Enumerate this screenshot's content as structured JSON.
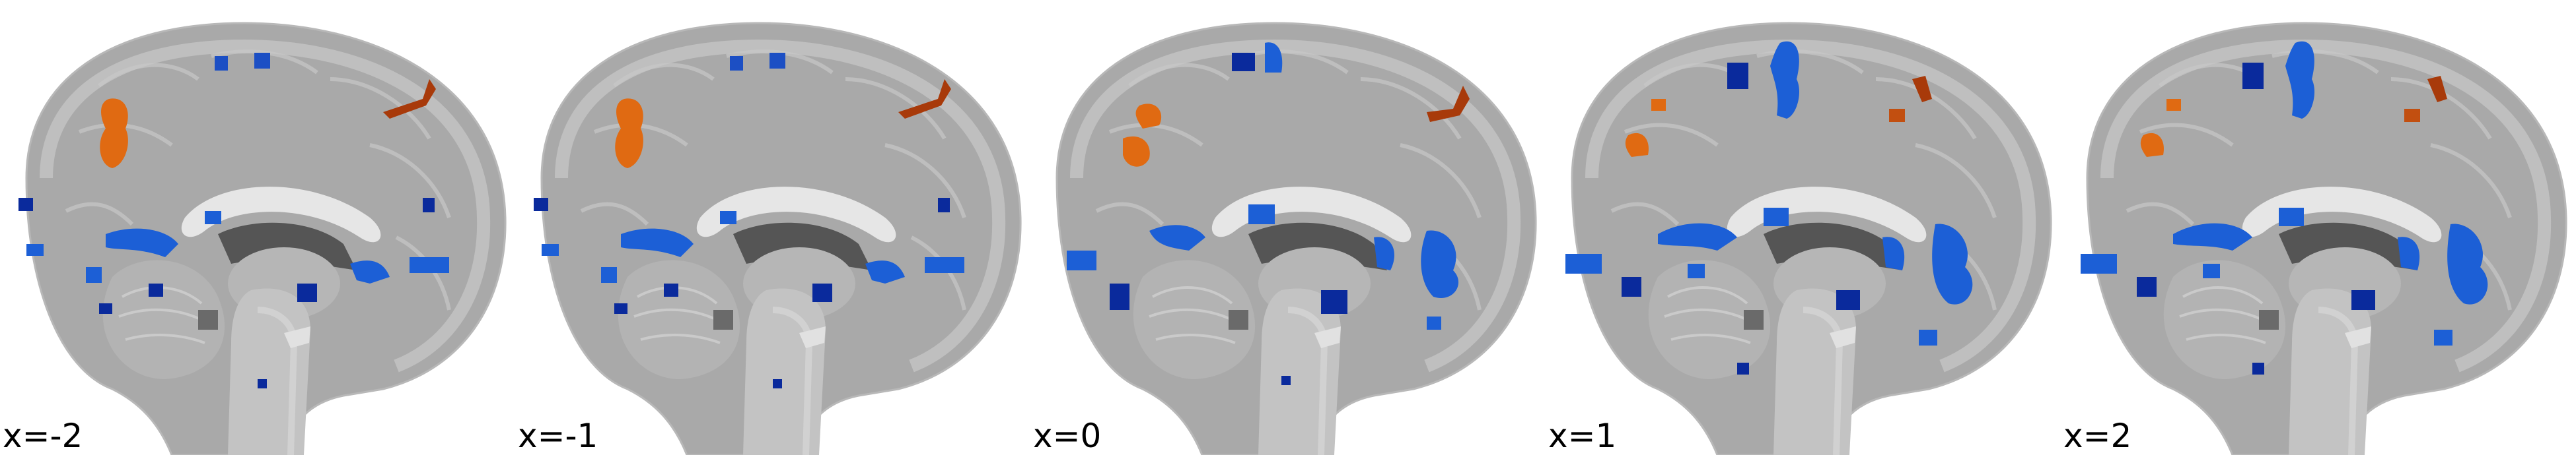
{
  "figure": {
    "background": "#ffffff",
    "colors": {
      "brain_tissue": "#a9a9a9",
      "brain_light": "#d9d9d9",
      "ventricle": "#555555",
      "activation_positive": "#e06a12",
      "activation_positive_dark": "#a83a0a",
      "activation_negative": "#1c5fd6",
      "activation_negative_dark": "#0a2a9c"
    },
    "view": "sagittal",
    "slices": [
      {
        "label": "x=-2"
      },
      {
        "label": "x=-1"
      },
      {
        "label": "x=0"
      },
      {
        "label": "x=1"
      },
      {
        "label": "x=2"
      }
    ]
  }
}
